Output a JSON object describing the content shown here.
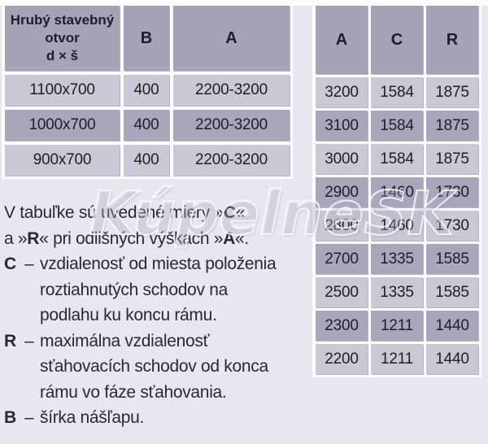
{
  "colors": {
    "page_bg": "#e8e6ef",
    "frame": "#fbfbfd",
    "header_bg": "#a6a3b7",
    "row_light": "#cac8d5",
    "row_dark": "#a9a6ba",
    "cell_text": "#1f1d29",
    "body_text": "#2a2833"
  },
  "left_table": {
    "header": {
      "col1_lines": [
        "Hrubý stavebný",
        "otvor",
        "d × š"
      ],
      "col2": "B",
      "col3": "A"
    },
    "rows": [
      [
        "1100x700",
        "400",
        "2200-3200"
      ],
      [
        "1000x700",
        "400",
        "2200-3200"
      ],
      [
        "900x700",
        "400",
        "2200-3200"
      ]
    ]
  },
  "right_table": {
    "headers": [
      "A",
      "C",
      "R"
    ],
    "rows": [
      [
        "3200",
        "1584",
        "1875"
      ],
      [
        "3100",
        "1584",
        "1875"
      ],
      [
        "3000",
        "1584",
        "1875"
      ],
      [
        "2900",
        "1460",
        "1730"
      ],
      [
        "2800",
        "1460",
        "1730"
      ],
      [
        "2700",
        "1335",
        "1585"
      ],
      [
        "2500",
        "1335",
        "1585"
      ],
      [
        "2300",
        "1211",
        "1440"
      ],
      [
        "2200",
        "1211",
        "1440"
      ]
    ]
  },
  "notes": {
    "intro_lines": [
      "V tabuľke sú uvedené miery »C«",
      "a »R« pri odlišných výškach »A«."
    ],
    "dash": "–",
    "definitions": [
      {
        "key": "C",
        "lines": [
          "vzdialenosť od miesta položenia",
          "roztiahnutých schodov na",
          "podlahu ku koncu rámu."
        ]
      },
      {
        "key": "R",
        "lines": [
          "maximálna vzdialenosť",
          "sťahovacích schodov od konca",
          "rámu vo fáze sťahovania."
        ]
      },
      {
        "key": "B",
        "lines": [
          "šírka nášľapu."
        ]
      }
    ]
  },
  "watermark": {
    "text": "KúpelneSK"
  }
}
